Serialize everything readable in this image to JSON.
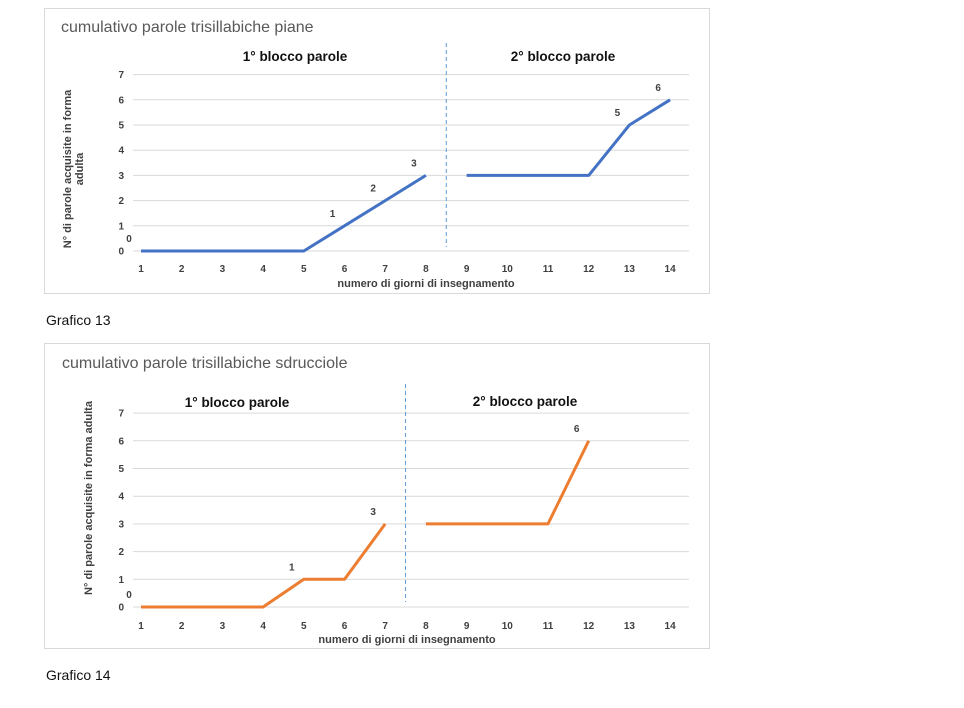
{
  "chart_data": [
    {
      "type": "line",
      "title": "cumulativo parole trisillabiche piane",
      "caption": "Grafico 13",
      "xlabel": "numero di giorni di insegnamento",
      "ylabel": "N° di parole acquisite in forma adulta",
      "block_labels": [
        "1° blocco parole",
        "2° blocco parole"
      ],
      "x_ticks": [
        1,
        2,
        3,
        4,
        5,
        6,
        7,
        8,
        9,
        10,
        11,
        12,
        13,
        14
      ],
      "y_ticks": [
        0,
        1,
        2,
        3,
        4,
        5,
        6,
        7
      ],
      "ylim": [
        0,
        7
      ],
      "xlim": [
        1,
        14
      ],
      "color": "#4472c4",
      "divider_x": 8.5,
      "series": [
        {
          "x": [
            1,
            2,
            3,
            4,
            5,
            6,
            7,
            8
          ],
          "values": [
            0,
            0,
            0,
            0,
            0,
            1,
            2,
            3
          ]
        },
        {
          "x": [
            9,
            10,
            11,
            12,
            13,
            14
          ],
          "values": [
            3,
            3,
            3,
            3,
            5,
            6
          ]
        }
      ],
      "data_labels": [
        {
          "x": 1,
          "y": 0,
          "text": "0"
        },
        {
          "x": 6,
          "y": 1,
          "text": "1"
        },
        {
          "x": 7,
          "y": 2,
          "text": "2"
        },
        {
          "x": 8,
          "y": 3,
          "text": "3"
        },
        {
          "x": 13,
          "y": 5,
          "text": "5"
        },
        {
          "x": 14,
          "y": 6,
          "text": "6"
        }
      ],
      "grid": true,
      "legend": "none"
    },
    {
      "type": "line",
      "title": "cumulativo parole trisillabiche sdrucciole",
      "caption": "Grafico 14",
      "xlabel": "numero di giorni di insegnamento",
      "ylabel": "N° di parole acquisite in forma adulta",
      "block_labels": [
        "1° blocco parole",
        "2° blocco parole"
      ],
      "x_ticks": [
        1,
        2,
        3,
        4,
        5,
        6,
        7,
        8,
        9,
        10,
        11,
        12,
        13,
        14
      ],
      "y_ticks": [
        0,
        1,
        2,
        3,
        4,
        5,
        6,
        7
      ],
      "ylim": [
        0,
        7
      ],
      "xlim": [
        1,
        14
      ],
      "color": "#ed7d31",
      "divider_x": 7.5,
      "series": [
        {
          "x": [
            1,
            2,
            3,
            4,
            5,
            6,
            7
          ],
          "values": [
            0,
            0,
            0,
            0,
            1,
            1,
            3
          ]
        },
        {
          "x": [
            8,
            9,
            10,
            11,
            12
          ],
          "values": [
            3,
            3,
            3,
            3,
            6
          ]
        }
      ],
      "data_labels": [
        {
          "x": 1,
          "y": 0,
          "text": "0"
        },
        {
          "x": 5,
          "y": 1,
          "text": "1"
        },
        {
          "x": 7,
          "y": 3,
          "text": "3"
        },
        {
          "x": 12,
          "y": 6,
          "text": "6"
        }
      ],
      "grid": true,
      "legend": "none"
    }
  ]
}
